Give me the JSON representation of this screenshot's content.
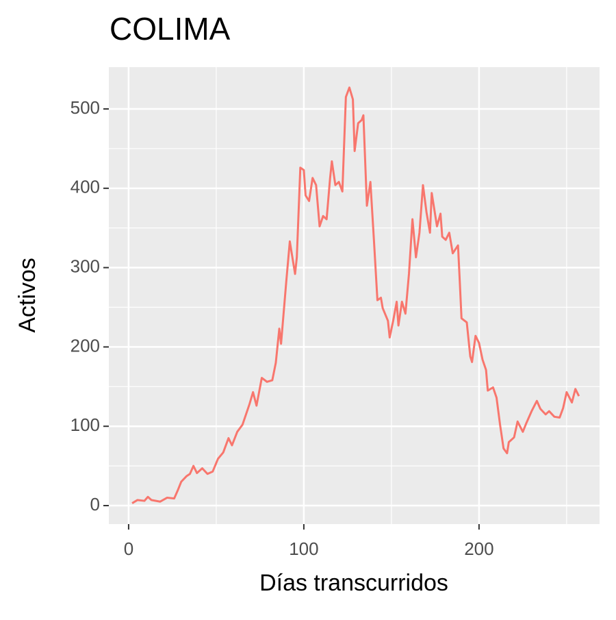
{
  "chart_data": {
    "type": "line",
    "title": "COLIMA",
    "x_label": "Días transcurridos",
    "y_label": "Activos",
    "x": [
      2,
      5,
      9,
      11,
      13,
      18,
      22,
      26,
      28,
      30,
      33,
      35,
      37,
      39,
      42,
      45,
      48,
      51,
      54,
      57,
      59,
      62,
      65,
      69,
      71,
      73,
      76,
      79,
      82,
      84,
      86,
      87,
      90,
      92,
      95,
      96,
      98,
      100,
      101,
      103,
      105,
      107,
      109,
      111,
      113,
      115,
      116,
      118,
      120,
      122,
      124,
      126,
      128,
      129,
      131,
      133,
      134,
      136,
      138,
      140,
      142,
      144,
      145,
      148,
      149,
      151,
      153,
      154,
      156,
      158,
      160,
      162,
      164,
      166,
      168,
      170,
      172,
      173,
      176,
      178,
      179,
      181,
      183,
      185,
      188,
      189,
      190,
      193,
      195,
      196,
      198,
      200,
      202,
      204,
      205,
      208,
      210,
      212,
      214,
      216,
      217,
      220,
      222,
      225,
      227,
      230,
      233,
      235,
      238,
      240,
      243,
      246,
      248,
      250,
      253,
      255,
      257
    ],
    "values": [
      3,
      7,
      6,
      11,
      7,
      5,
      10,
      9,
      19,
      30,
      37,
      40,
      50,
      41,
      47,
      40,
      43,
      59,
      67,
      85,
      76,
      93,
      102,
      128,
      143,
      126,
      161,
      156,
      158,
      180,
      223,
      204,
      283,
      333,
      292,
      313,
      426,
      423,
      391,
      384,
      413,
      404,
      352,
      365,
      361,
      413,
      434,
      404,
      408,
      396,
      515,
      527,
      512,
      447,
      482,
      486,
      492,
      378,
      408,
      335,
      259,
      262,
      249,
      233,
      212,
      233,
      257,
      227,
      257,
      242,
      292,
      361,
      313,
      344,
      404,
      370,
      344,
      394,
      352,
      368,
      339,
      335,
      344,
      318,
      328,
      283,
      236,
      231,
      188,
      181,
      214,
      205,
      184,
      171,
      145,
      149,
      136,
      102,
      72,
      66,
      80,
      86,
      106,
      93,
      104,
      119,
      132,
      122,
      115,
      119,
      112,
      111,
      123,
      143,
      130,
      147,
      138
    ],
    "color": "#F8766D",
    "xlim": [
      -11.3,
      268.8
    ],
    "ylim": [
      -23.3,
      552.7
    ],
    "xticks": [
      0,
      100,
      200
    ],
    "yticks": [
      0,
      100,
      200,
      300,
      400,
      500
    ],
    "x_minor_ticks": [
      50,
      150,
      250
    ],
    "y_minor_ticks": [
      50,
      150,
      250,
      350,
      450
    ],
    "grid": true
  }
}
